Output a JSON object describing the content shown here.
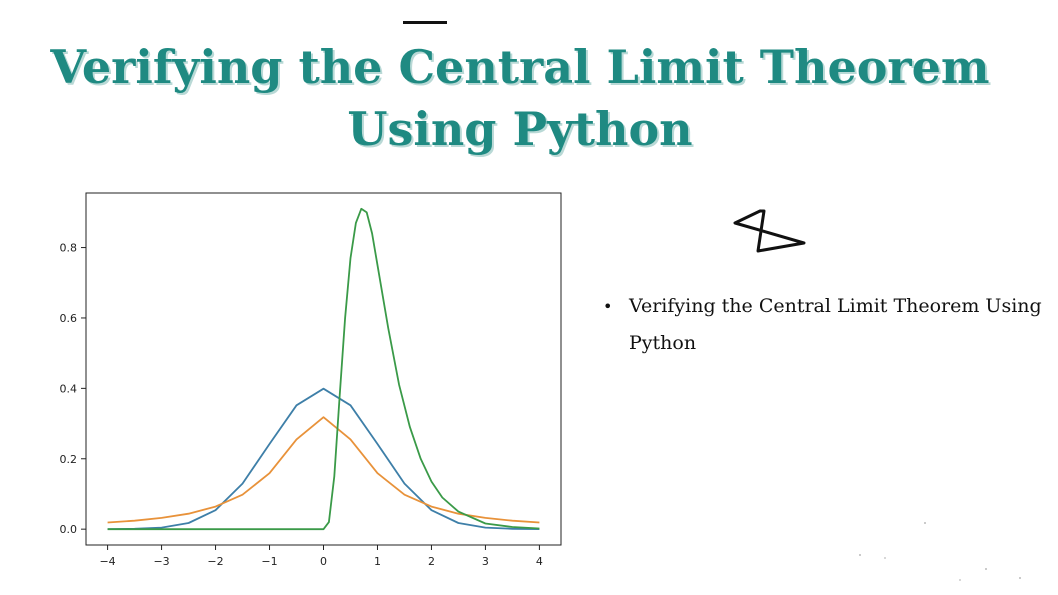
{
  "slide": {
    "title_line1": "Verifying the Central Limit Theorem",
    "title_line2": "Using Python",
    "bullet": "Verifying the Central Limit Theorem Using Python"
  },
  "colors": {
    "title": "#1f8a82",
    "normal": "#3e7fa8",
    "cauchy": "#e8923a",
    "skewed": "#3a9a48"
  },
  "chart_data": {
    "type": "line",
    "title": "",
    "xlabel": "",
    "ylabel": "",
    "xlim": [
      -4.4,
      4.4
    ],
    "ylim": [
      -0.045,
      0.955
    ],
    "x_ticks": [
      -4,
      -3,
      -2,
      -1,
      0,
      1,
      2,
      3,
      4
    ],
    "x_tick_labels": [
      "−4",
      "−3",
      "−2",
      "−1",
      "0",
      "1",
      "2",
      "3",
      "4"
    ],
    "y_ticks": [
      0.0,
      0.2,
      0.4,
      0.6,
      0.8
    ],
    "y_tick_labels": [
      "0.0",
      "0.2",
      "0.4",
      "0.6",
      "0.8"
    ],
    "grid": false,
    "series": [
      {
        "color": "#3e7fa8",
        "x": [
          -4,
          -3.5,
          -3,
          -2.5,
          -2,
          -1.5,
          -1,
          -0.5,
          0,
          0.5,
          1,
          1.5,
          2,
          2.5,
          3,
          3.5,
          4
        ],
        "y": [
          0.0001,
          0.0009,
          0.0044,
          0.0175,
          0.054,
          0.1295,
          0.242,
          0.352,
          0.399,
          0.352,
          0.242,
          0.1295,
          0.054,
          0.0175,
          0.0044,
          0.0009,
          0.0001
        ]
      },
      {
        "color": "#e8923a",
        "x": [
          -4,
          -3.5,
          -3,
          -2.5,
          -2,
          -1.5,
          -1,
          -0.5,
          0,
          0.5,
          1,
          1.5,
          2,
          2.5,
          3,
          3.5,
          4
        ],
        "y": [
          0.019,
          0.024,
          0.032,
          0.044,
          0.064,
          0.098,
          0.159,
          0.255,
          0.318,
          0.255,
          0.159,
          0.098,
          0.064,
          0.044,
          0.032,
          0.024,
          0.019
        ]
      },
      {
        "color": "#3a9a48",
        "x": [
          -4,
          -1,
          0,
          0.1,
          0.2,
          0.3,
          0.4,
          0.5,
          0.6,
          0.7,
          0.8,
          0.9,
          1.0,
          1.2,
          1.4,
          1.6,
          1.8,
          2.0,
          2.2,
          2.5,
          3,
          3.5,
          4
        ],
        "y": [
          0,
          0,
          0,
          0.02,
          0.15,
          0.38,
          0.6,
          0.77,
          0.87,
          0.91,
          0.9,
          0.84,
          0.75,
          0.57,
          0.41,
          0.29,
          0.2,
          0.135,
          0.09,
          0.05,
          0.016,
          0.006,
          0.002
        ]
      }
    ]
  }
}
